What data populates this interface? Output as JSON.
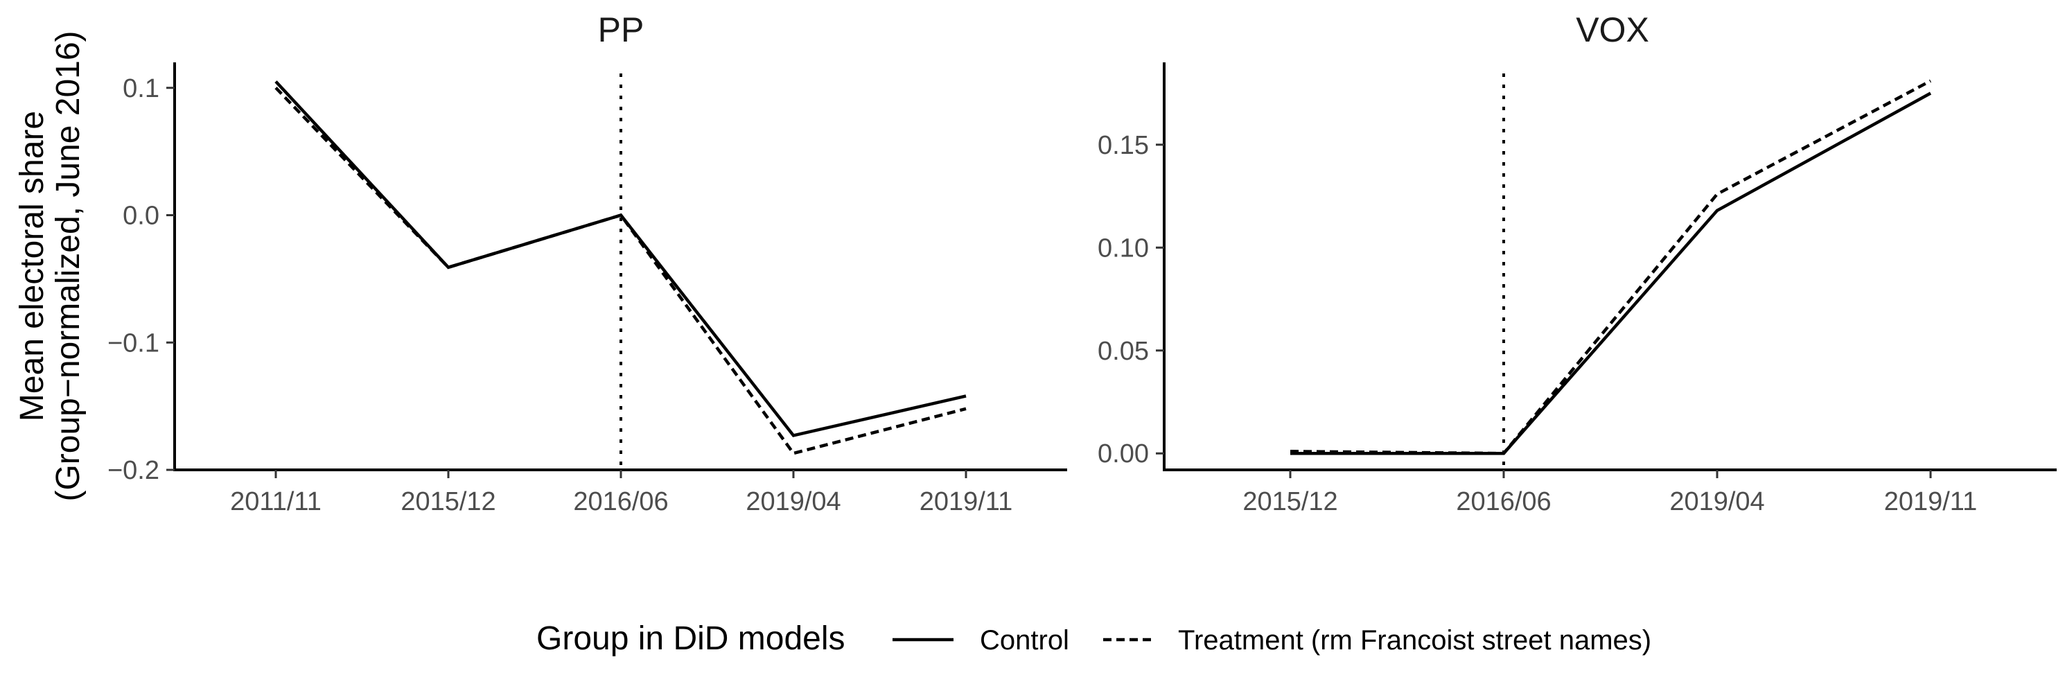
{
  "chart_data": [
    {
      "type": "line",
      "title": "PP",
      "ylabel": "Mean electoral share\n(Group−normalized, June 2016)",
      "categories": [
        "2011/11",
        "2015/12",
        "2016/06",
        "2019/04",
        "2019/11"
      ],
      "ylim": [
        -0.2,
        0.12
      ],
      "yticks": [
        0.1,
        0.0,
        -0.1,
        -0.2
      ],
      "ytick_labels": [
        "0.1",
        "0.0",
        "−0.1",
        "−0.2"
      ],
      "vline_at": "2016/06",
      "series": [
        {
          "name": "Control",
          "values": [
            0.105,
            -0.041,
            0.0,
            -0.173,
            -0.142
          ]
        },
        {
          "name": "Treatment (rm Francoist street names)",
          "values": [
            0.1,
            -0.041,
            0.0,
            -0.187,
            -0.152
          ]
        }
      ]
    },
    {
      "type": "line",
      "title": "VOX",
      "categories": [
        "2015/12",
        "2016/06",
        "2019/04",
        "2019/11"
      ],
      "ylim": [
        -0.008,
        0.19
      ],
      "yticks": [
        0.0,
        0.05,
        0.1,
        0.15
      ],
      "ytick_labels": [
        "0.00",
        "0.05",
        "0.10",
        "0.15"
      ],
      "vline_at": "2016/06",
      "series": [
        {
          "name": "Control",
          "values": [
            0.0,
            0.0,
            0.118,
            0.175
          ]
        },
        {
          "name": "Treatment (rm Francoist street names)",
          "values": [
            0.001,
            0.0,
            0.126,
            0.181
          ]
        }
      ]
    }
  ],
  "legend": {
    "title": "Group in DiD models",
    "items": [
      {
        "label": "Control",
        "style": "solid"
      },
      {
        "label": "Treatment (rm Francoist street names)",
        "style": "dashed"
      }
    ]
  }
}
